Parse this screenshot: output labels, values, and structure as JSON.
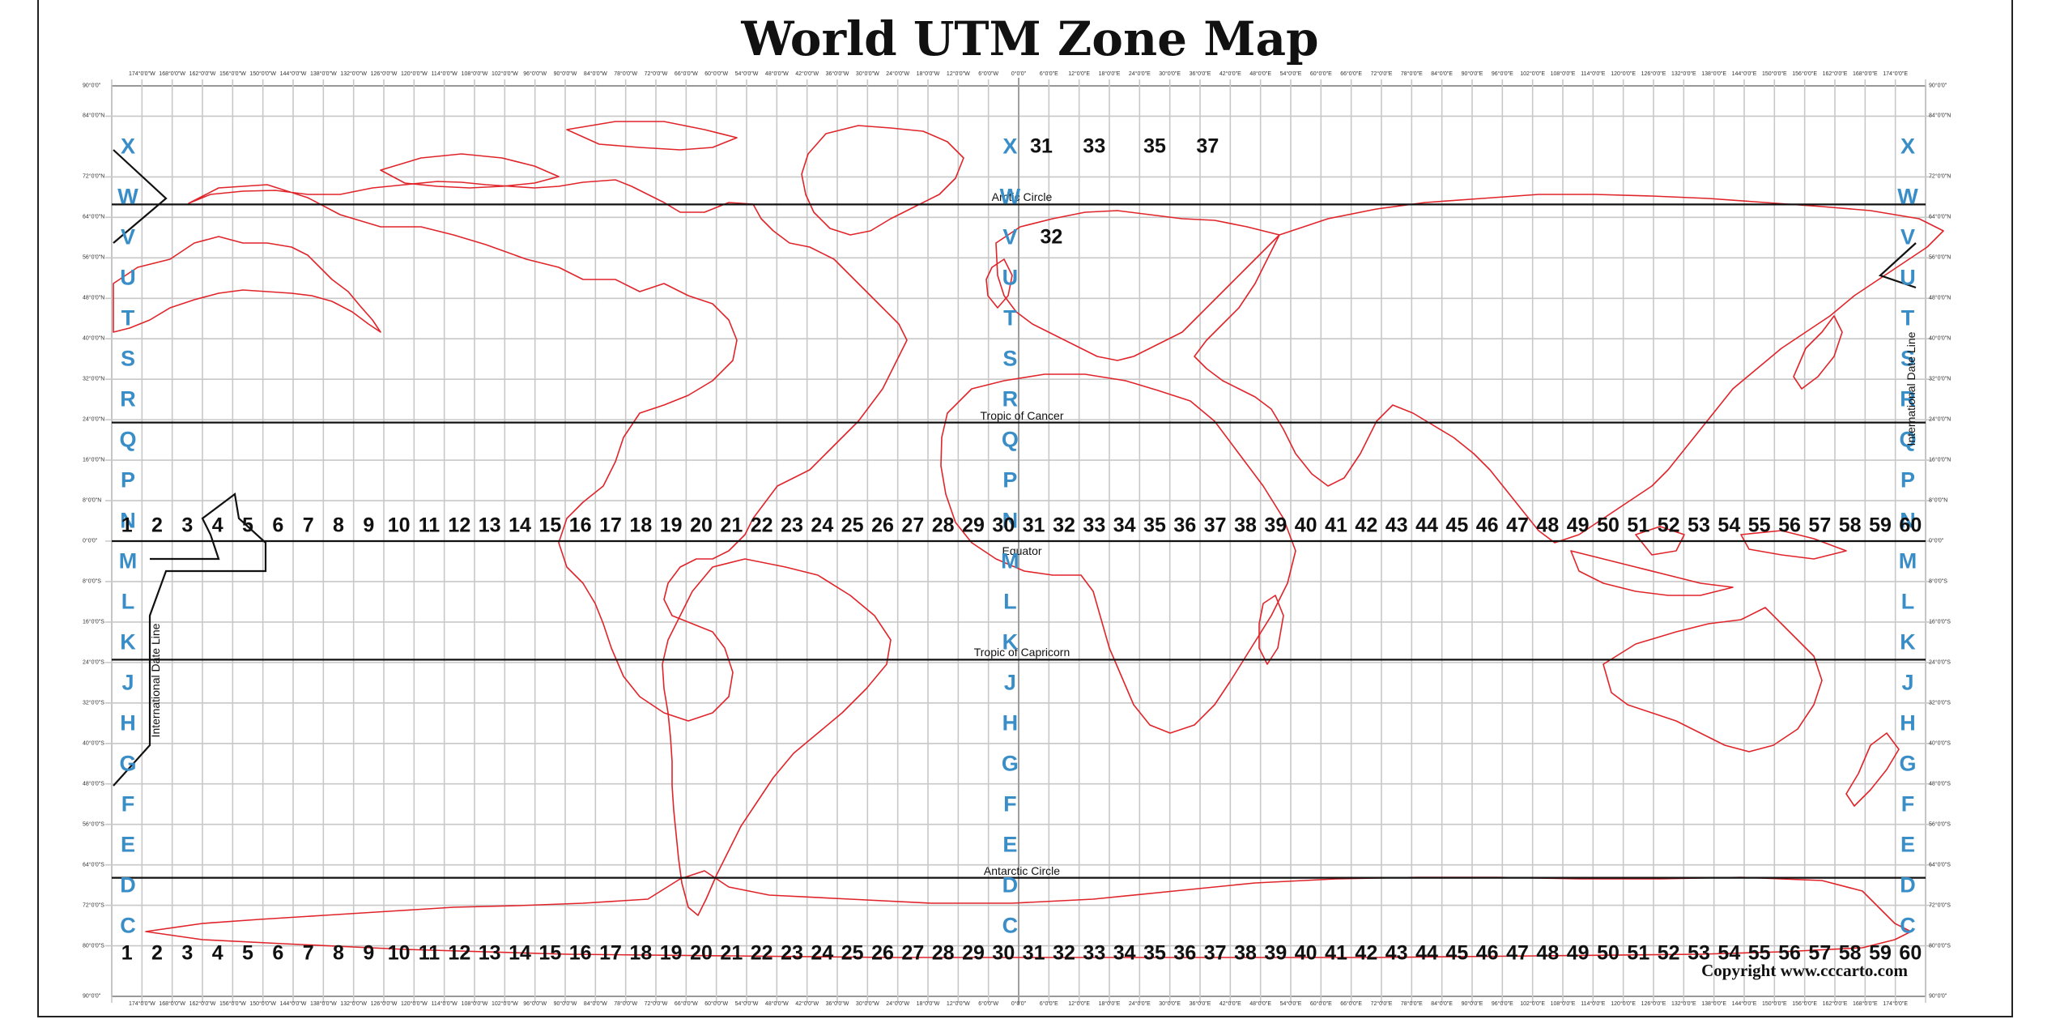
{
  "title": "World UTM Zone Map",
  "copyright": "Copyright www.cccarto.com",
  "colors": {
    "grid": "#c8c8c8",
    "coast": "#e0242a",
    "lat_letters": "#3a8ec8",
    "lines": "#111111",
    "frame": "#222222"
  },
  "grid": {
    "lon_min": -180,
    "lon_max": 180,
    "lat_min": -90,
    "lat_max": 90,
    "zone_width_deg": 6,
    "band_height_deg": 8
  },
  "top_lon_ticks": [
    "174°0'0\"W",
    "168°0'0\"W",
    "162°0'0\"W",
    "156°0'0\"W",
    "150°0'0\"W",
    "144°0'0\"W",
    "138°0'0\"W",
    "132°0'0\"W",
    "126°0'0\"W",
    "120°0'0\"W",
    "114°0'0\"W",
    "108°0'0\"W",
    "102°0'0\"W",
    "96°0'0\"W",
    "90°0'0\"W",
    "84°0'0\"W",
    "78°0'0\"W",
    "72°0'0\"W",
    "66°0'0\"W",
    "60°0'0\"W",
    "54°0'0\"W",
    "48°0'0\"W",
    "42°0'0\"W",
    "36°0'0\"W",
    "30°0'0\"W",
    "24°0'0\"W",
    "18°0'0\"W",
    "12°0'0\"W",
    "6°0'0\"W",
    "0°0'0\"",
    "6°0'0\"E",
    "12°0'0\"E",
    "18°0'0\"E",
    "24°0'0\"E",
    "30°0'0\"E",
    "36°0'0\"E",
    "42°0'0\"E",
    "48°0'0\"E",
    "54°0'0\"E",
    "60°0'0\"E",
    "66°0'0\"E",
    "72°0'0\"E",
    "78°0'0\"E",
    "84°0'0\"E",
    "90°0'0\"E",
    "96°0'0\"E",
    "102°0'0\"E",
    "108°0'0\"E",
    "114°0'0\"E",
    "120°0'0\"E",
    "126°0'0\"E",
    "132°0'0\"E",
    "138°0'0\"E",
    "144°0'0\"E",
    "150°0'0\"E",
    "156°0'0\"E",
    "162°0'0\"E",
    "168°0'0\"E",
    "174°0'0\"E"
  ],
  "lat_ticks": [
    "90°0'0\"",
    "84°0'0\"N",
    "72°0'0\"N",
    "64°0'0\"N",
    "56°0'0\"N",
    "48°0'0\"N",
    "40°0'0\"N",
    "32°0'0\"N",
    "24°0'0\"N",
    "16°0'0\"N",
    "8°0'0\"N",
    "0°0'0\"",
    "8°0'0\"S",
    "16°0'0\"S",
    "24°0'0\"S",
    "32°0'0\"S",
    "40°0'0\"S",
    "48°0'0\"S",
    "56°0'0\"S",
    "64°0'0\"S",
    "72°0'0\"S",
    "80°0'0\"S",
    "90°0'0\""
  ],
  "lat_tick_values": [
    90,
    84,
    72,
    64,
    56,
    48,
    40,
    32,
    24,
    16,
    8,
    0,
    -8,
    -16,
    -24,
    -32,
    -40,
    -48,
    -56,
    -64,
    -72,
    -80,
    -90
  ],
  "lat_bands": [
    "X",
    "W",
    "V",
    "U",
    "T",
    "S",
    "R",
    "Q",
    "P",
    "N",
    "M",
    "L",
    "K",
    "J",
    "H",
    "G",
    "F",
    "E",
    "D",
    "C"
  ],
  "lat_band_centers": [
    78,
    68,
    60,
    52,
    44,
    36,
    28,
    20,
    12,
    4,
    -4,
    -12,
    -20,
    -28,
    -36,
    -44,
    -52,
    -60,
    -68,
    -76
  ],
  "zones": [
    "1",
    "2",
    "3",
    "4",
    "5",
    "6",
    "7",
    "8",
    "9",
    "10",
    "11",
    "12",
    "13",
    "14",
    "15",
    "16",
    "17",
    "18",
    "19",
    "20",
    "21",
    "22",
    "23",
    "24",
    "25",
    "26",
    "27",
    "28",
    "29",
    "30",
    "31",
    "32",
    "33",
    "34",
    "35",
    "36",
    "37",
    "38",
    "39",
    "40",
    "41",
    "42",
    "43",
    "44",
    "45",
    "46",
    "47",
    "48",
    "49",
    "50",
    "51",
    "52",
    "53",
    "54",
    "55",
    "56",
    "57",
    "58",
    "59",
    "60"
  ],
  "svalbard_zones": [
    "31",
    "33",
    "35",
    "37"
  ],
  "norway_zone": "32",
  "special_lines": [
    {
      "name": "Arctic Circle",
      "lat": 66.56
    },
    {
      "name": "Tropic of Cancer",
      "lat": 23.44
    },
    {
      "name": "Equator",
      "lat": 0
    },
    {
      "name": "Tropic of Capricorn",
      "lat": -23.44
    },
    {
      "name": "Antarctic Circle",
      "lat": -66.56
    }
  ],
  "date_line_label": "International Date Line"
}
